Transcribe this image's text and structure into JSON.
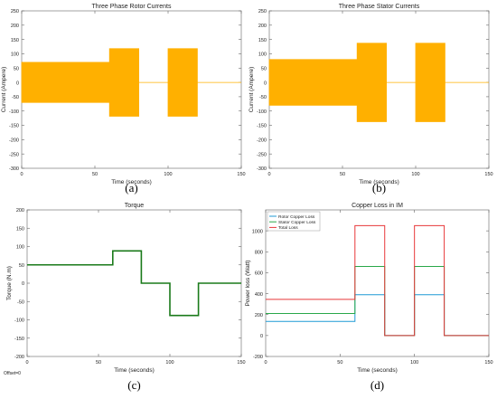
{
  "chart_data": [
    {
      "id": "a",
      "type": "area",
      "title": "Three Phase Rotor Currents",
      "xlabel": "Time (seconds)",
      "ylabel": "Current (Ampere)",
      "xlim": [
        0,
        150
      ],
      "ylim": [
        -300,
        250
      ],
      "xticks": [
        0,
        50,
        100,
        150
      ],
      "yticks": [
        -300,
        -250,
        -200,
        -150,
        -100,
        -50,
        0,
        50,
        100,
        150,
        200,
        250
      ],
      "grid": false,
      "color": "#FFB000",
      "envelope": {
        "x": [
          0,
          60,
          60,
          80,
          80,
          100,
          100,
          120,
          120,
          150
        ],
        "upper": [
          70,
          70,
          118,
          118,
          0,
          0,
          118,
          118,
          0,
          0
        ],
        "lower": [
          -70,
          -70,
          -118,
          -118,
          0,
          0,
          -118,
          -118,
          0,
          0
        ]
      },
      "panel_label": "(a)"
    },
    {
      "id": "b",
      "type": "area",
      "title": "Three Phase Stator Currents",
      "xlabel": "Time (seconds)",
      "ylabel": "Current (Ampere)",
      "xlim": [
        0,
        150
      ],
      "ylim": [
        -300,
        250
      ],
      "xticks": [
        0,
        50,
        100,
        150
      ],
      "yticks": [
        -300,
        -250,
        -200,
        -150,
        -100,
        -50,
        0,
        50,
        100,
        150,
        200,
        250
      ],
      "grid": false,
      "color": "#FFB000",
      "envelope": {
        "x": [
          0,
          60,
          60,
          80,
          80,
          100,
          100,
          120,
          120,
          150
        ],
        "upper": [
          80,
          80,
          137,
          137,
          0,
          0,
          137,
          137,
          0,
          0
        ],
        "lower": [
          -80,
          -80,
          -137,
          -137,
          0,
          0,
          -137,
          -137,
          0,
          0
        ]
      },
      "panel_label": "(b)"
    },
    {
      "id": "c",
      "type": "line",
      "title": "Torque",
      "xlabel": "Time (seconds)",
      "ylabel": "Torque (N.m)",
      "xlim": [
        0,
        150
      ],
      "ylim": [
        -200,
        200
      ],
      "xticks": [
        0,
        50,
        100,
        150
      ],
      "yticks": [
        -200,
        -150,
        -100,
        -50,
        0,
        50,
        100,
        150,
        200
      ],
      "grid": false,
      "footer_note": "Offset=0",
      "series": [
        {
          "color": "#1a7a1a",
          "x": [
            0,
            60,
            60,
            80,
            80,
            100,
            100,
            120,
            120,
            150
          ],
          "y": [
            50,
            50,
            88,
            88,
            0,
            0,
            -88,
            -88,
            0,
            0
          ]
        }
      ],
      "panel_label": "(c)"
    },
    {
      "id": "d",
      "type": "line",
      "title": "Copper Loss in IM",
      "xlabel": "Time (seconds)",
      "ylabel": "Power loss (Watt)",
      "xlim": [
        0,
        150
      ],
      "ylim": [
        -200,
        1200
      ],
      "xticks": [
        0,
        50,
        100,
        150
      ],
      "yticks": [
        -200,
        0,
        200,
        400,
        600,
        800,
        1000
      ],
      "grid": false,
      "legend": "top-left",
      "series": [
        {
          "name": "Rotor Copper Loss",
          "color": "#1f9ad6",
          "x": [
            0,
            60,
            60,
            80,
            80,
            100,
            100,
            120,
            120,
            150
          ],
          "y": [
            135,
            135,
            390,
            390,
            0,
            0,
            390,
            390,
            0,
            0
          ]
        },
        {
          "name": "Stator Copper Loss",
          "color": "#2aa84a",
          "x": [
            0,
            60,
            60,
            80,
            80,
            100,
            100,
            120,
            120,
            150
          ],
          "y": [
            210,
            210,
            660,
            660,
            0,
            0,
            660,
            660,
            0,
            0
          ]
        },
        {
          "name": "Total Loss",
          "color": "#e8383a",
          "x": [
            0,
            60,
            60,
            80,
            80,
            100,
            100,
            120,
            120,
            150
          ],
          "y": [
            345,
            345,
            1050,
            1050,
            0,
            0,
            1050,
            1050,
            0,
            0
          ]
        }
      ],
      "panel_label": "(d)"
    }
  ]
}
